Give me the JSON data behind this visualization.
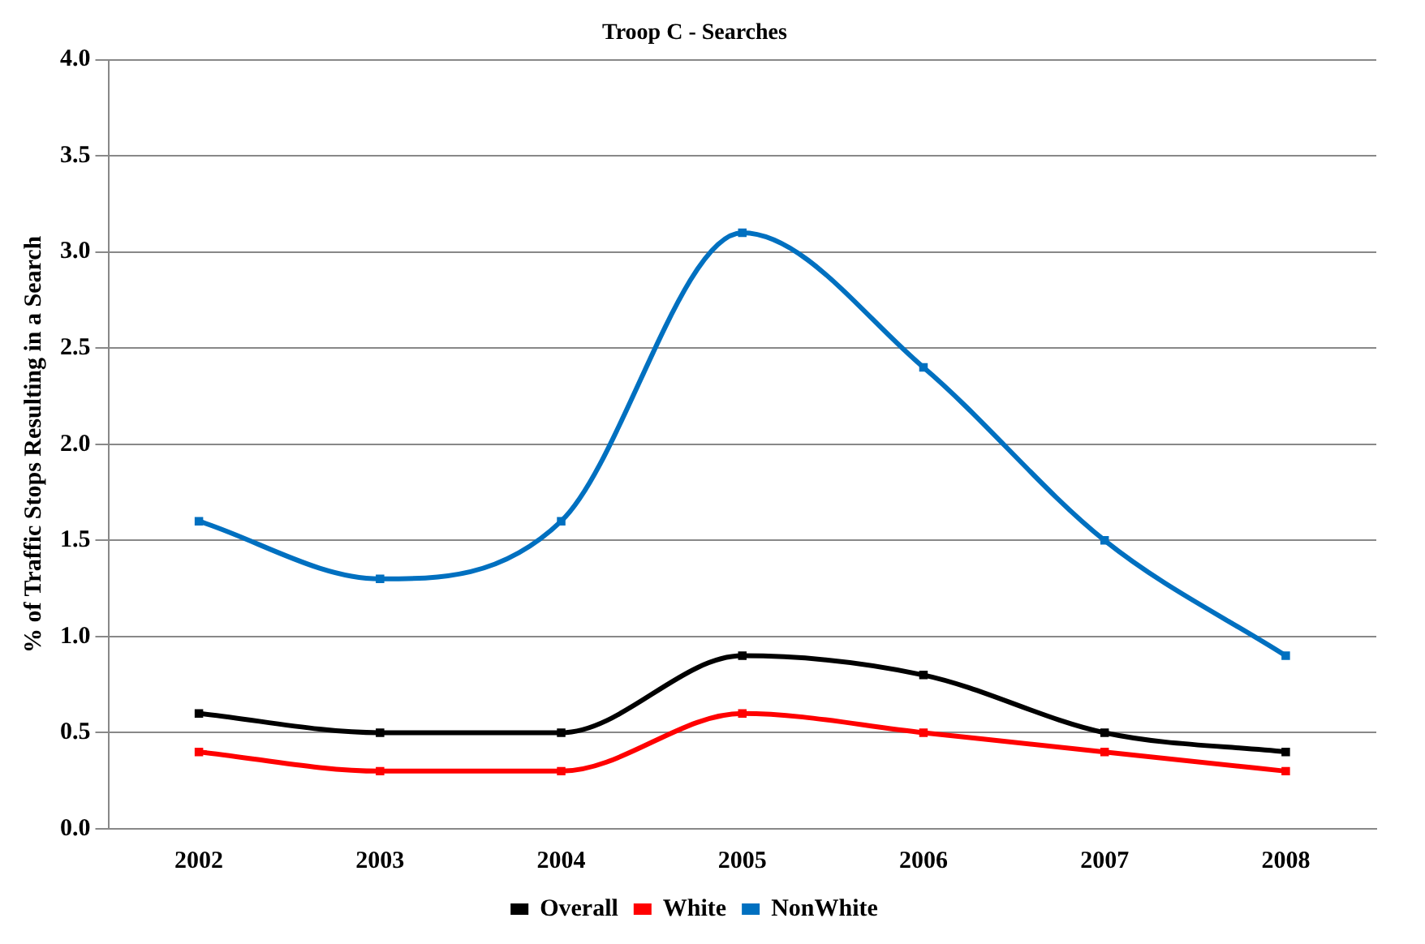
{
  "chart_data": {
    "type": "line",
    "title": "Troop C - Searches",
    "ylabel": "% of Traffic Stops Resulting in a Search",
    "categories": [
      "2002",
      "2003",
      "2004",
      "2005",
      "2006",
      "2007",
      "2008"
    ],
    "series": [
      {
        "name": "Overall",
        "color": "#000000",
        "values": [
          0.6,
          0.5,
          0.5,
          0.9,
          0.8,
          0.5,
          0.4
        ]
      },
      {
        "name": "White",
        "color": "#ff0000",
        "values": [
          0.4,
          0.3,
          0.3,
          0.6,
          0.5,
          0.4,
          0.3
        ]
      },
      {
        "name": "NonWhite",
        "color": "#0070c0",
        "values": [
          1.6,
          1.3,
          1.6,
          3.1,
          2.4,
          1.5,
          0.9
        ]
      }
    ],
    "ylim": [
      0,
      4
    ],
    "yticks": [
      {
        "value": 0,
        "label": "0.0"
      },
      {
        "value": 0.5,
        "label": "0.5"
      },
      {
        "value": 1,
        "label": "1.0"
      },
      {
        "value": 1.5,
        "label": "1.5"
      },
      {
        "value": 2,
        "label": "2.0"
      },
      {
        "value": 2.5,
        "label": "2.5"
      },
      {
        "value": 3,
        "label": "3.0"
      },
      {
        "value": 3.5,
        "label": "3.5"
      },
      {
        "value": 4,
        "label": "4.0"
      }
    ],
    "grid": "y",
    "legend": "bottom",
    "marker": "square",
    "line_style": "solid"
  }
}
